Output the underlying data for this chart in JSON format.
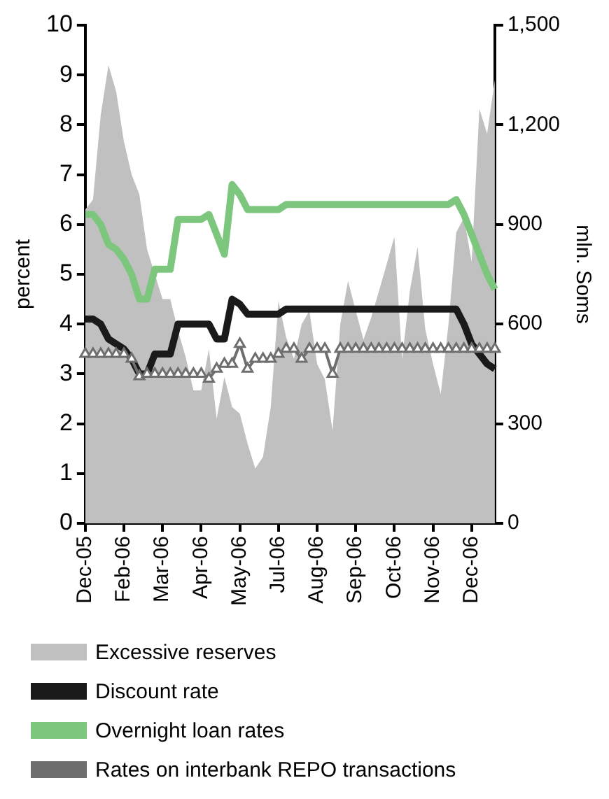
{
  "chart_data": {
    "type": "line",
    "categories": [
      "Dec-05",
      null,
      null,
      null,
      null,
      "Feb-06",
      null,
      null,
      null,
      null,
      "Mar-06",
      null,
      null,
      null,
      null,
      "Apr-06",
      null,
      null,
      null,
      null,
      "May-06",
      null,
      null,
      null,
      null,
      "Jul-06",
      null,
      null,
      null,
      null,
      "Aug-06",
      null,
      null,
      null,
      null,
      "Sep-06",
      null,
      null,
      null,
      null,
      "Oct-06",
      null,
      null,
      null,
      null,
      "Nov-06",
      null,
      null,
      null,
      null,
      "Dec-06",
      null,
      null,
      null
    ],
    "ylabel": "percent",
    "y2label": "mln. Soms",
    "ylim": [
      0,
      10
    ],
    "yticks": [
      0,
      1,
      2,
      3,
      4,
      5,
      6,
      7,
      8,
      9,
      10
    ],
    "y2lim": [
      0,
      1500
    ],
    "y2ticks": [
      0,
      300,
      600,
      900,
      {
        "value": 1200,
        "label": "1,200"
      },
      {
        "value": 1500,
        "label": "1,500"
      }
    ],
    "grid": false,
    "legend": "bottom",
    "series": [
      {
        "name": "Excessive reserves",
        "type": "area",
        "axis": "y2",
        "color": "#c0c0c0",
        "values": [
          945,
          975,
          1230,
          1380,
          1300,
          1150,
          1050,
          990,
          825,
          750,
          675,
          675,
          580,
          500,
          400,
          400,
          525,
          315,
          440,
          350,
          330,
          240,
          165,
          200,
          350,
          670,
          560,
          495,
          600,
          640,
          480,
          434,
          279,
          600,
          730,
          640,
          553,
          620,
          699,
          780,
          863,
          495,
          700,
          832,
          584,
          480,
          389,
          600,
          876,
          920,
          788,
          1248,
          1173,
          1336
        ]
      },
      {
        "name": "Discount rate",
        "type": "line",
        "color": "#1a1a1a",
        "marker": "none",
        "line_style": "solid",
        "values": [
          4.1,
          4.1,
          4.0,
          3.7,
          3.6,
          3.5,
          3.3,
          3.0,
          3.0,
          3.4,
          3.4,
          3.4,
          4.0,
          4.0,
          4.0,
          4.0,
          4.0,
          3.7,
          3.7,
          4.5,
          4.4,
          4.2,
          4.2,
          4.2,
          4.2,
          4.2,
          4.3,
          4.3,
          4.3,
          4.3,
          4.3,
          4.3,
          4.3,
          4.3,
          4.3,
          4.3,
          4.3,
          4.3,
          4.3,
          4.3,
          4.3,
          4.3,
          4.3,
          4.3,
          4.3,
          4.3,
          4.3,
          4.3,
          4.3,
          4.0,
          3.6,
          3.4,
          3.2,
          3.1
        ]
      },
      {
        "name": "Overnight loan rates",
        "type": "line",
        "color": "#7dc67d",
        "marker": "none",
        "line_style": "solid",
        "values": [
          6.2,
          6.2,
          6.0,
          5.6,
          5.5,
          5.3,
          5.0,
          4.5,
          4.5,
          5.1,
          5.1,
          5.1,
          6.1,
          6.1,
          6.1,
          6.1,
          6.2,
          5.8,
          5.4,
          6.8,
          6.6,
          6.3,
          6.3,
          6.3,
          6.3,
          6.3,
          6.4,
          6.4,
          6.4,
          6.4,
          6.4,
          6.4,
          6.4,
          6.4,
          6.4,
          6.4,
          6.4,
          6.4,
          6.4,
          6.4,
          6.4,
          6.4,
          6.4,
          6.4,
          6.4,
          6.4,
          6.4,
          6.4,
          6.5,
          6.2,
          5.8,
          5.4,
          5.0,
          4.7
        ]
      },
      {
        "name": "Rates on interbank REPO transactions",
        "type": "line",
        "color": "#6e6e6e",
        "marker": "triangle",
        "line_style": "solid",
        "values": [
          3.4,
          3.4,
          3.4,
          3.4,
          3.4,
          3.4,
          3.3,
          2.95,
          3.0,
          3.0,
          3.0,
          3.0,
          3.0,
          3.0,
          3.0,
          3.0,
          2.9,
          3.1,
          3.2,
          3.2,
          3.6,
          3.1,
          3.3,
          3.3,
          3.3,
          3.4,
          3.5,
          3.5,
          3.3,
          3.5,
          3.5,
          3.5,
          3.0,
          3.5,
          3.5,
          3.5,
          3.5,
          3.5,
          3.5,
          3.5,
          3.5,
          3.5,
          3.5,
          3.5,
          3.5,
          3.5,
          3.5,
          3.5,
          3.5,
          3.5,
          3.5,
          3.5,
          3.5,
          3.5
        ]
      }
    ]
  }
}
